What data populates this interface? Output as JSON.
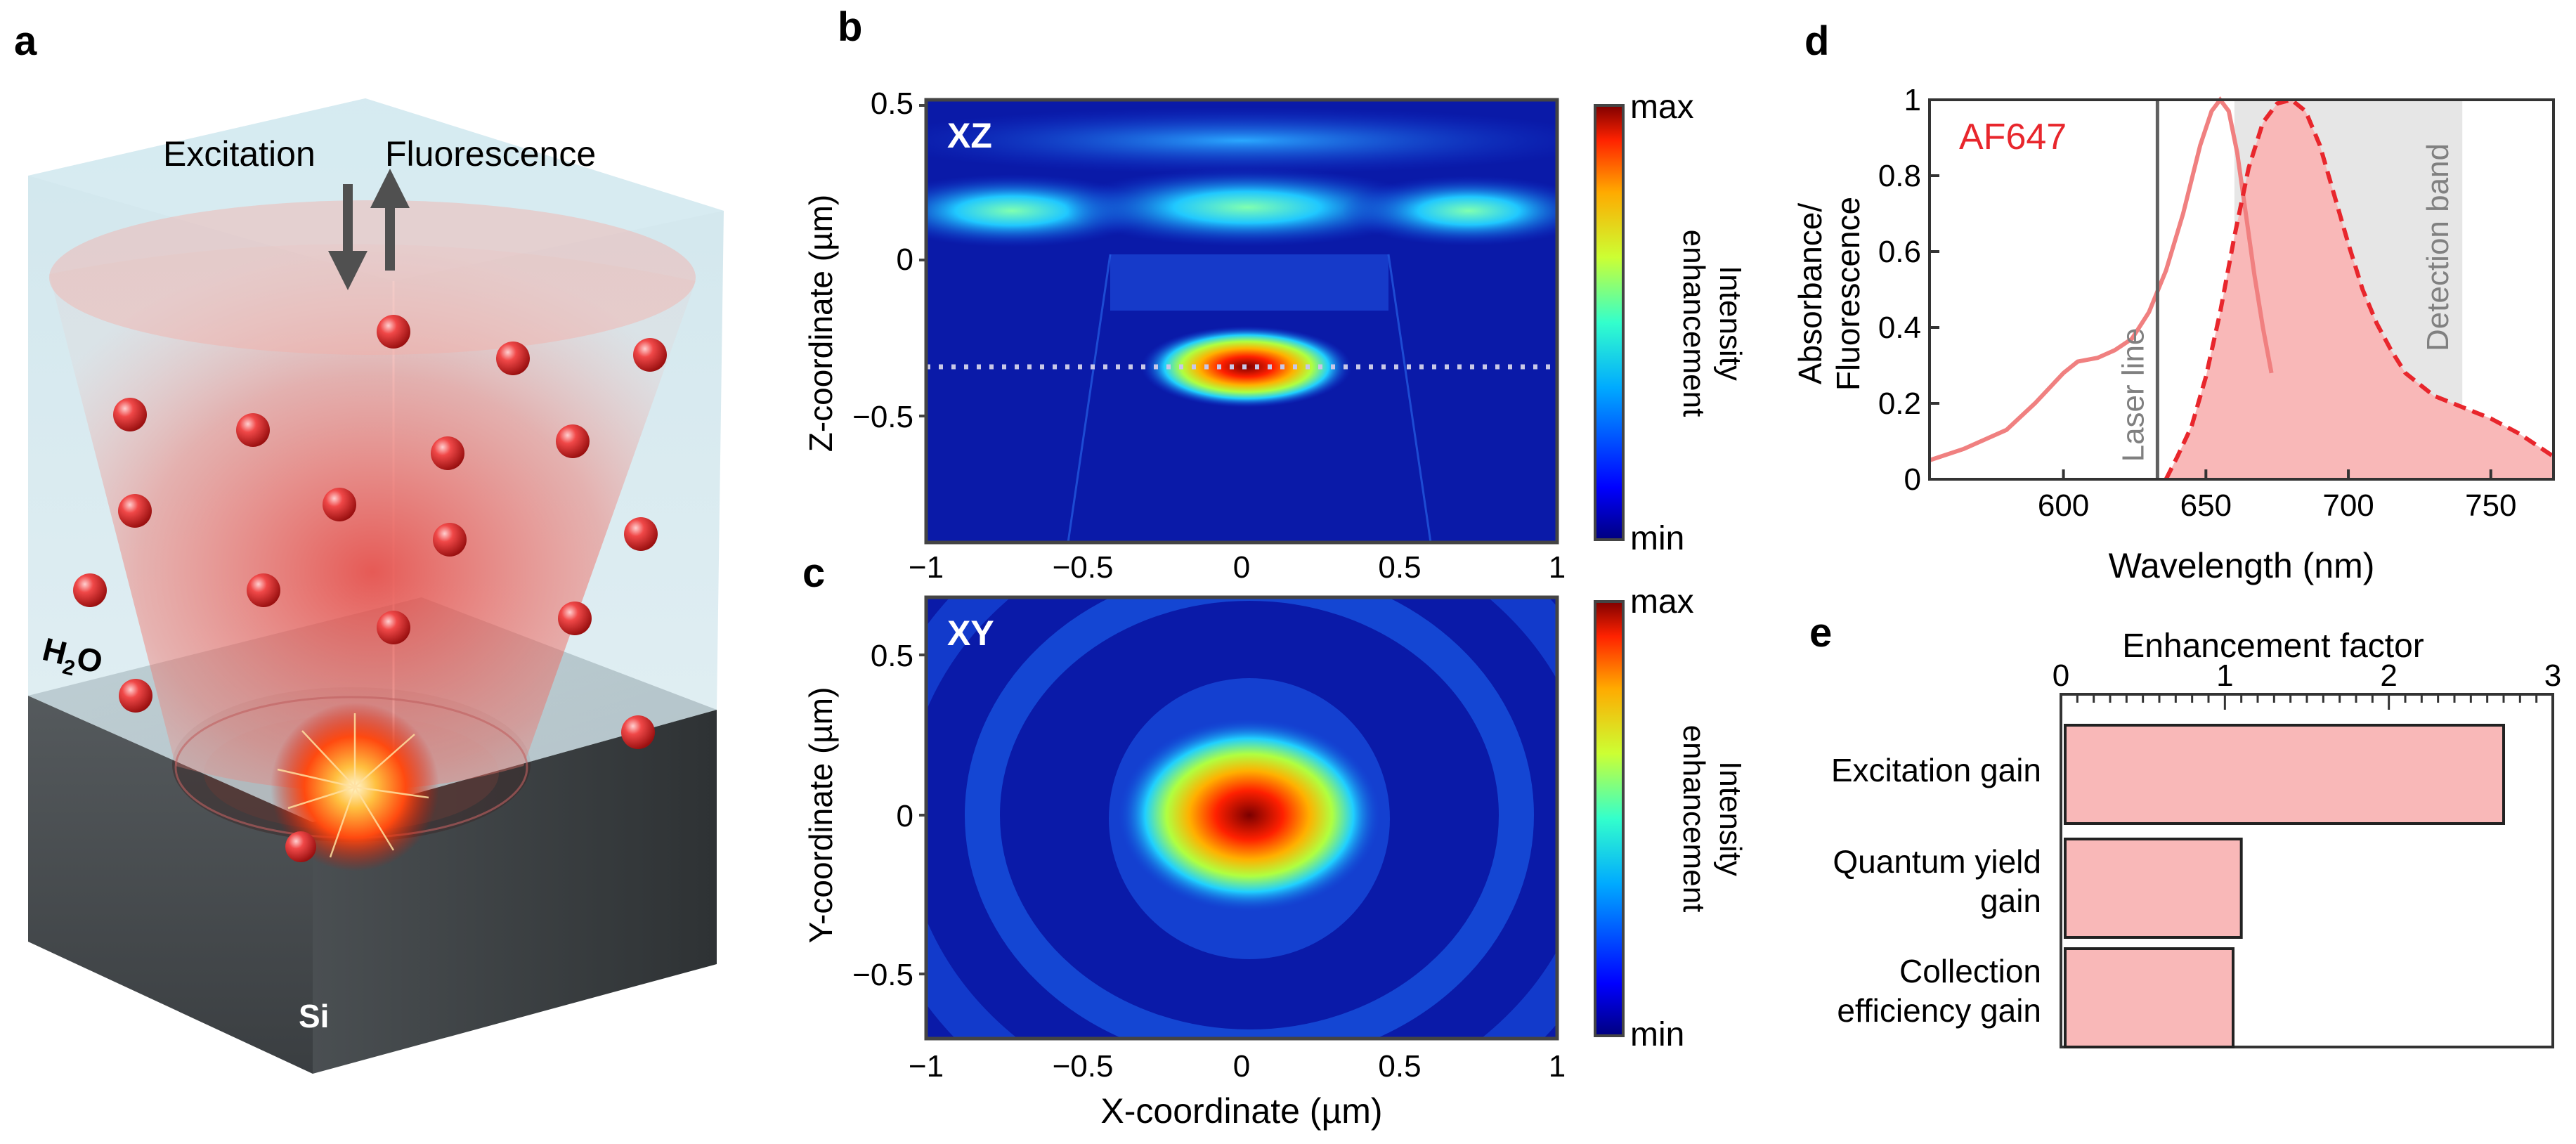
{
  "panels": {
    "a": {
      "letter": "a",
      "excitation_label": "Excitation",
      "fluorescence_label": "Fluorescence",
      "water_label_main": "H",
      "water_label_sub": "2",
      "water_label_end": "O",
      "substrate_label": "Si"
    },
    "b": {
      "letter": "b",
      "tag": "XZ",
      "ylabel": "Z-coordinate (µm)",
      "xticks": [
        "−1",
        "−0.5",
        "0",
        "0.5",
        "1"
      ],
      "yticks": [
        "0.5",
        "0",
        "−0.5"
      ],
      "colorbar_max": "max",
      "colorbar_min": "min",
      "colorbar_label_1": "Intensity",
      "colorbar_label_2": "enhancement"
    },
    "c": {
      "letter": "c",
      "tag": "XY",
      "ylabel": "Y-coordinate (µm)",
      "xlabel": "X-coordinate (µm)",
      "xticks": [
        "−1",
        "−0.5",
        "0",
        "0.5",
        "1"
      ],
      "yticks": [
        "0.5",
        "0",
        "−0.5"
      ],
      "colorbar_max": "max",
      "colorbar_min": "min",
      "colorbar_label_1": "Intensity",
      "colorbar_label_2": "enhancement"
    },
    "d": {
      "letter": "d",
      "dye": "AF647",
      "laser_label": "Laser line",
      "band_label": "Detection band",
      "ylabel_1": "Absorbance/",
      "ylabel_2": "Fluorescence",
      "xlabel": "Wavelength (nm)"
    },
    "e": {
      "letter": "e",
      "xlabel": "Enhancement factor",
      "bar_1_label": "Excitation gain",
      "bar_2_label_1": "Quantum yield",
      "bar_2_label_2": "gain",
      "bar_3_label_1": "Collection",
      "bar_3_label_2": "efficiency gain"
    }
  },
  "colors": {
    "absorbance": "#f08080",
    "emission": "#e8262c",
    "emission_fill": "#f9b8b8",
    "band": "#e6e6e6",
    "bar_fill": "#f9b8b8",
    "field_background": "#0a1aa8",
    "dye_label": "#e8262c"
  },
  "chart_data": [
    {
      "id": "d",
      "type": "line",
      "title": "AF647",
      "xlabel": "Wavelength (nm)",
      "ylabel": "Absorbance/ Fluorescence",
      "xlim": [
        553,
        772
      ],
      "ylim": [
        0,
        1
      ],
      "xticks": [
        "600",
        "650",
        "700",
        "750"
      ],
      "yticks": [
        "0",
        "0.2",
        "0.4",
        "0.6",
        "0.8",
        "1"
      ],
      "laser_line_nm": 633,
      "detection_band_nm": [
        660,
        740
      ],
      "series": [
        {
          "name": "Absorbance",
          "style": "solid",
          "x": [
            553,
            565,
            580,
            590,
            600,
            605,
            612,
            618,
            624,
            630,
            636,
            642,
            648,
            652,
            655,
            658,
            661,
            664,
            667,
            670,
            673
          ],
          "y": [
            0.05,
            0.08,
            0.13,
            0.2,
            0.28,
            0.31,
            0.32,
            0.34,
            0.37,
            0.44,
            0.55,
            0.7,
            0.88,
            0.97,
            1.0,
            0.97,
            0.86,
            0.7,
            0.54,
            0.4,
            0.28
          ]
        },
        {
          "name": "Fluorescence",
          "style": "dashed",
          "filled": true,
          "x": [
            636,
            640,
            645,
            650,
            655,
            660,
            665,
            670,
            675,
            680,
            685,
            690,
            695,
            700,
            705,
            710,
            715,
            720,
            730,
            740,
            750,
            760,
            772
          ],
          "y": [
            0.0,
            0.06,
            0.14,
            0.27,
            0.44,
            0.64,
            0.82,
            0.94,
            0.99,
            1.0,
            0.97,
            0.88,
            0.75,
            0.62,
            0.5,
            0.41,
            0.34,
            0.28,
            0.22,
            0.19,
            0.16,
            0.12,
            0.06
          ]
        }
      ]
    },
    {
      "id": "e",
      "type": "bar",
      "orientation": "horizontal",
      "xlabel": "Enhancement factor",
      "xlim": [
        0,
        3
      ],
      "xticks": [
        "0",
        "1",
        "2",
        "3"
      ],
      "categories": [
        "Excitation gain",
        "Quantum yield gain",
        "Collection efficiency gain"
      ],
      "values": [
        2.7,
        1.1,
        1.05
      ]
    },
    {
      "id": "b",
      "type": "heatmap",
      "title": "XZ",
      "ylabel": "Z-coordinate (µm)",
      "xlim": [
        -1,
        1
      ],
      "ylim": [
        -0.9,
        0.5
      ],
      "xticks": [
        "−1",
        "−0.5",
        "0",
        "0.5",
        "1"
      ],
      "yticks": [
        "0.5",
        "0",
        "−0.5"
      ],
      "dotted_line_z": -0.34
    },
    {
      "id": "c",
      "type": "heatmap",
      "title": "XY",
      "xlabel": "X-coordinate (µm)",
      "ylabel": "Y-coordinate (µm)",
      "xlim": [
        -1,
        1
      ],
      "ylim": [
        -0.7,
        0.7
      ],
      "xticks": [
        "−1",
        "−0.5",
        "0",
        "0.5",
        "1"
      ],
      "yticks": [
        "0.5",
        "0",
        "−0.5"
      ]
    }
  ]
}
